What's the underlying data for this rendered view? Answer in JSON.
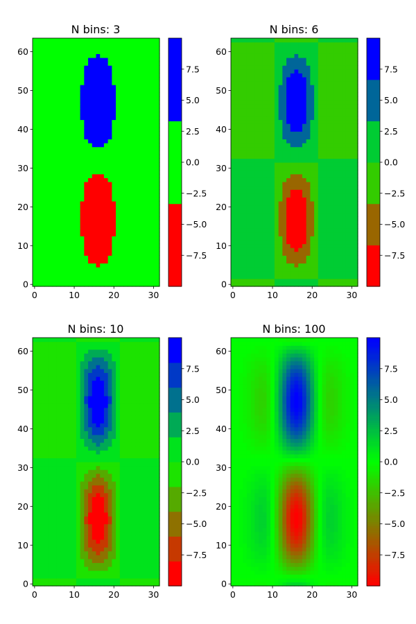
{
  "chart_data": [
    {
      "type": "heatmap",
      "title": "N bins: 3",
      "n_bins": 3,
      "colormap": [
        "#ff0000",
        "#00ff00",
        "#0000ff"
      ],
      "grid_shape": [
        64,
        32
      ],
      "xlim": [
        -0.5,
        31.5
      ],
      "ylim": [
        -0.5,
        63.5
      ],
      "xticks": [
        0,
        10,
        20,
        30
      ],
      "yticks": [
        0,
        10,
        20,
        30,
        40,
        50,
        60
      ],
      "colorbar": {
        "range": [
          -10,
          10
        ],
        "ticks": [
          -7.5,
          -5.0,
          -2.5,
          0.0,
          2.5,
          5.0,
          7.5
        ],
        "tick_labels": [
          "−7.5",
          "−5.0",
          "−2.5",
          "0.0",
          "2.5",
          "5.0",
          "7.5"
        ]
      }
    },
    {
      "type": "heatmap",
      "title": "N bins: 6",
      "n_bins": 6,
      "colormap": [
        "#ff0000",
        "#00ff00",
        "#0000ff"
      ],
      "grid_shape": [
        64,
        32
      ],
      "xlim": [
        -0.5,
        31.5
      ],
      "ylim": [
        -0.5,
        63.5
      ],
      "xticks": [
        0,
        10,
        20,
        30
      ],
      "yticks": [
        0,
        10,
        20,
        30,
        40,
        50,
        60
      ],
      "colorbar": {
        "range": [
          -10,
          10
        ],
        "ticks": [
          -7.5,
          -5.0,
          -2.5,
          0.0,
          2.5,
          5.0,
          7.5
        ],
        "tick_labels": [
          "−7.5",
          "−5.0",
          "−2.5",
          "0.0",
          "2.5",
          "5.0",
          "7.5"
        ]
      }
    },
    {
      "type": "heatmap",
      "title": "N bins: 10",
      "n_bins": 10,
      "colormap": [
        "#ff0000",
        "#00ff00",
        "#0000ff"
      ],
      "grid_shape": [
        64,
        32
      ],
      "xlim": [
        -0.5,
        31.5
      ],
      "ylim": [
        -0.5,
        63.5
      ],
      "xticks": [
        0,
        10,
        20,
        30
      ],
      "yticks": [
        0,
        10,
        20,
        30,
        40,
        50,
        60
      ],
      "colorbar": {
        "range": [
          -10,
          10
        ],
        "ticks": [
          -7.5,
          -5.0,
          -2.5,
          0.0,
          2.5,
          5.0,
          7.5
        ],
        "tick_labels": [
          "−7.5",
          "−5.0",
          "−2.5",
          "0.0",
          "2.5",
          "5.0",
          "7.5"
        ]
      }
    },
    {
      "type": "heatmap",
      "title": "N bins: 100",
      "n_bins": 100,
      "colormap": [
        "#ff0000",
        "#00ff00",
        "#0000ff"
      ],
      "grid_shape": [
        64,
        32
      ],
      "xlim": [
        -0.5,
        31.5
      ],
      "ylim": [
        -0.5,
        63.5
      ],
      "xticks": [
        0,
        10,
        20,
        30
      ],
      "yticks": [
        0,
        10,
        20,
        30,
        40,
        50,
        60
      ],
      "colorbar": {
        "range": [
          -10,
          10
        ],
        "ticks": [
          -7.5,
          -5.0,
          -2.5,
          0.0,
          2.5,
          5.0,
          7.5
        ],
        "tick_labels": [
          "−7.5",
          "−5.0",
          "−2.5",
          "0.0",
          "2.5",
          "5.0",
          "7.5"
        ]
      }
    }
  ]
}
